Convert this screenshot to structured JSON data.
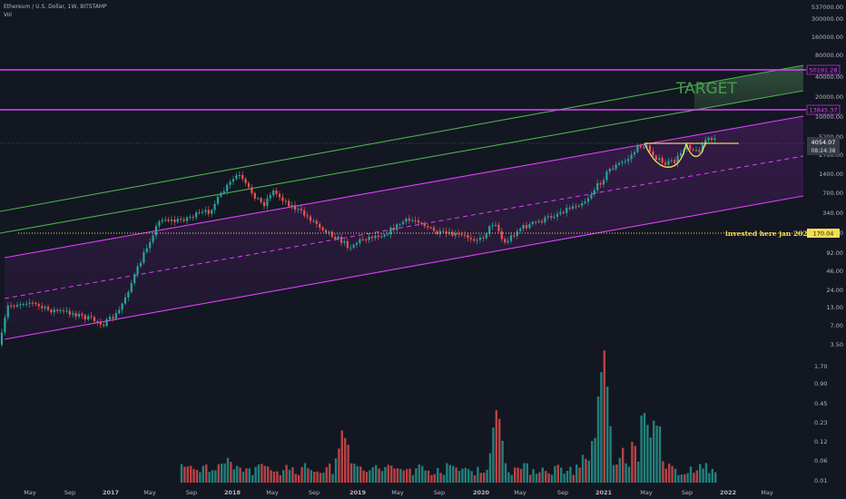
{
  "header": {
    "symbol_line": "Ethereum / U.S. Dollar, 1W, BITSTAMP",
    "volume_label": "Vol"
  },
  "colors": {
    "background": "#131722",
    "axis_text": "#b2b5be",
    "up_candle": "#26a69a",
    "down_candle": "#ef5350",
    "magenta": "#e040fb",
    "green_channel": "#4caf50",
    "target_text": "#43a047",
    "yellow": "#f5e050"
  },
  "chart_data": {
    "type": "candlestick",
    "title": "Ethereum / U.S. Dollar, 1W, BITSTAMP",
    "scale": "log",
    "price_ticks": [
      "537000.00",
      "300000.00",
      "160000.00",
      "80000.00",
      "40000.00",
      "20000.00",
      "10000.00",
      "5200.00",
      "2700.00",
      "1400.00",
      "700.00",
      "340.00",
      "170.00",
      "92.00",
      "46.00",
      "24.00",
      "13.00",
      "7.00",
      "3.50"
    ],
    "volume_ticks": [
      "1.70",
      "0.90",
      "0.45",
      "0.23",
      "0.12",
      "0.06",
      "0.01"
    ],
    "time_ticks": [
      "May",
      "Sep",
      "2017",
      "May",
      "Sep",
      "2018",
      "May",
      "Sep",
      "2019",
      "May",
      "Sep",
      "2020",
      "May",
      "Sep",
      "2021",
      "May",
      "Sep",
      "2022",
      "May"
    ],
    "current_price": "4054.07",
    "countdown": "08:24:38",
    "horizontal_levels": [
      {
        "value": 50191.28,
        "label": "50191.28",
        "color": "#e040fb"
      },
      {
        "value": 13845.37,
        "label": "13845.37",
        "color": "#e040fb"
      },
      {
        "value": 170.04,
        "label": "170.04",
        "color": "#f5e050",
        "note": "invested here jan 2020",
        "dotted": true
      }
    ],
    "annotations": [
      "TARGET",
      "invested here jan 2020"
    ],
    "grid": false,
    "legend": "top-left"
  }
}
